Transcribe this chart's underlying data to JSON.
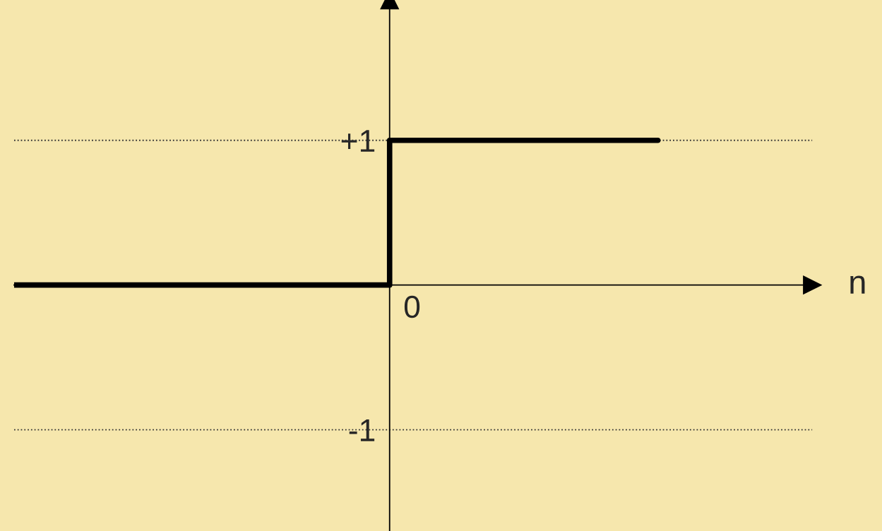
{
  "chart_data": {
    "type": "step",
    "xlabel": "n",
    "categories": [
      null,
      null,
      null,
      null,
      null,
      null,
      null,
      "0",
      null,
      null,
      null,
      null,
      null
    ],
    "values": [
      0,
      0,
      0,
      0,
      0,
      0,
      0,
      1,
      1,
      1,
      1,
      1,
      1
    ],
    "color": "#000000",
    "ylim": [
      -1.7,
      1.97
    ],
    "yticks": [
      {
        "value": 1,
        "label": "+1"
      },
      {
        "value": -1,
        "label": "-1"
      }
    ],
    "ref_lines": [
      {
        "axis": "y",
        "value": 1,
        "line_style": "dotted"
      },
      {
        "axis": "y",
        "value": -1,
        "line_style": "dotted"
      }
    ],
    "grid": false
  }
}
